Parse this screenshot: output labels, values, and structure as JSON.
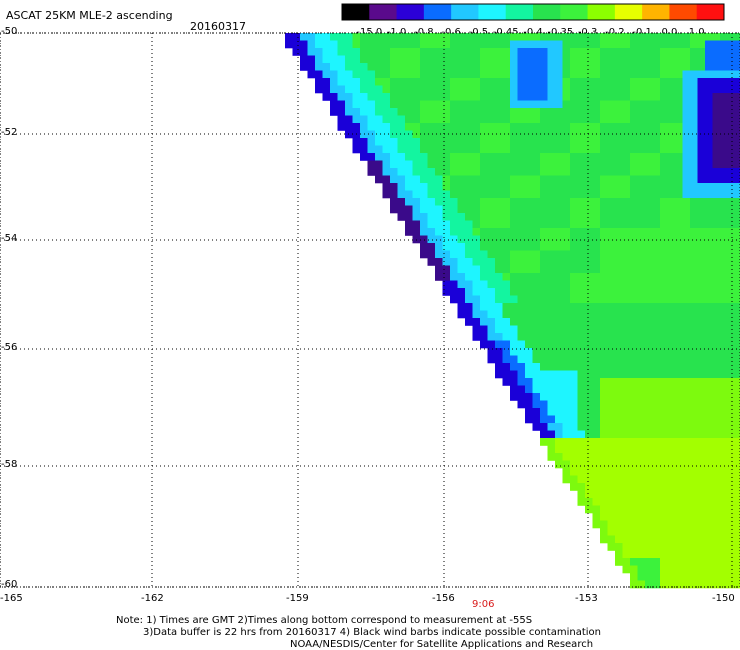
{
  "header": {
    "title": "ASCAT 25KM MLE-2 ascending",
    "date": "20160317"
  },
  "colorbar": {
    "labels": [
      "-15.0",
      "-1.0",
      "-0.8",
      "-0.6",
      "-0.5",
      "-0.45",
      "-0.4",
      "-0.35",
      "-0.3",
      "-0.2",
      "-0.1",
      "0.0",
      "1.0"
    ],
    "colors": [
      "#000000",
      "#5a0a8c",
      "#2b00d8",
      "#0a6cff",
      "#21c8ff",
      "#1ef5ff",
      "#13f5a0",
      "#28e34e",
      "#3cf23c",
      "#8cff00",
      "#e6ff00",
      "#ffb400",
      "#ff4a00",
      "#ff1010"
    ]
  },
  "map": {
    "lat_labels": [
      "-50",
      "-52",
      "-54",
      "-56",
      "-58",
      "-60"
    ],
    "lon_labels": [
      "-165",
      "-162",
      "-159",
      "-156",
      "-153",
      "-150"
    ],
    "time_label": "9:06"
  },
  "notes": {
    "line1": "Note: 1) Times are GMT 2)Times along bottom correspond to measurement at -55S",
    "line2": "3)Data buffer is 22 hrs from 20160317 4) Black wind barbs indicate possible contamination",
    "line3": "NOAA/NESDIS/Center for Satellite Applications and Research"
  }
}
